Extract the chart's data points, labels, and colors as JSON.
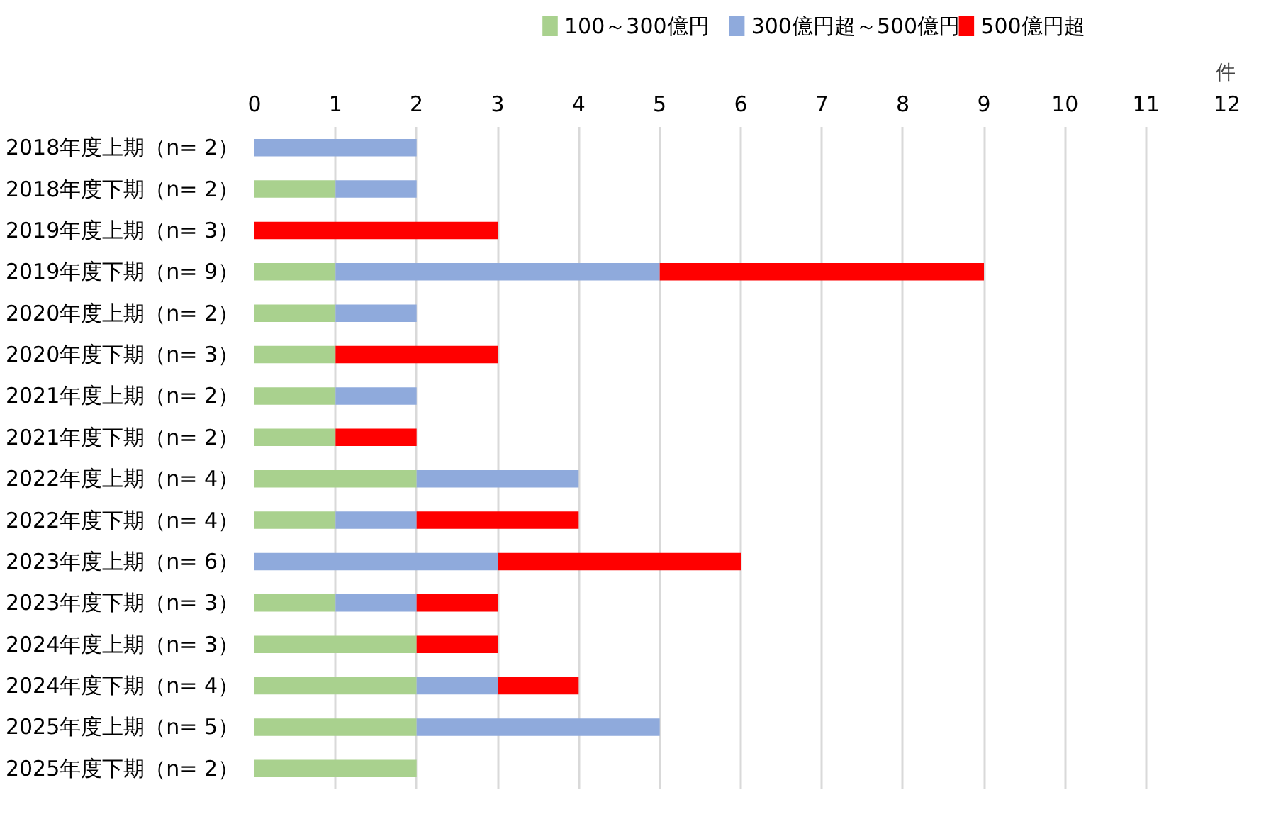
{
  "chart_data": {
    "type": "bar",
    "orientation": "horizontal",
    "stacked": true,
    "xlabel": "件",
    "categories": [
      "2018年度上期（n= 2）",
      "2018年度下期（n= 2）",
      "2019年度上期（n= 3）",
      "2019年度下期（n= 9）",
      "2020年度上期（n= 2）",
      "2020年度下期（n= 3）",
      "2021年度上期（n= 2）",
      "2021年度下期（n= 2）",
      "2022年度上期（n= 4）",
      "2022年度下期（n= 4）",
      "2023年度上期（n= 6）",
      "2023年度下期（n= 3）",
      "2024年度上期（n= 3）",
      "2024年度下期（n= 4）",
      "2025年度上期（n= 5）",
      "2025年度下期（n= 2）"
    ],
    "series": [
      {
        "name": "100～300億円",
        "color": "#a9d18e",
        "values": [
          0,
          1,
          0,
          1,
          1,
          1,
          1,
          1,
          2,
          1,
          0,
          1,
          2,
          2,
          2,
          2
        ]
      },
      {
        "name": "300億円超～500億円",
        "color": "#8faadc",
        "values": [
          2,
          1,
          0,
          4,
          1,
          0,
          1,
          0,
          2,
          1,
          3,
          1,
          0,
          1,
          3,
          0
        ]
      },
      {
        "name": "500億円超",
        "color": "#ff0000",
        "values": [
          0,
          0,
          3,
          4,
          0,
          2,
          0,
          1,
          0,
          2,
          3,
          1,
          1,
          1,
          0,
          0
        ]
      }
    ],
    "xlim": [
      0,
      12
    ],
    "xticks": [
      0,
      1,
      2,
      3,
      4,
      5,
      6,
      7,
      8,
      9,
      10,
      11,
      12
    ],
    "grid": "x",
    "legend": "top"
  }
}
